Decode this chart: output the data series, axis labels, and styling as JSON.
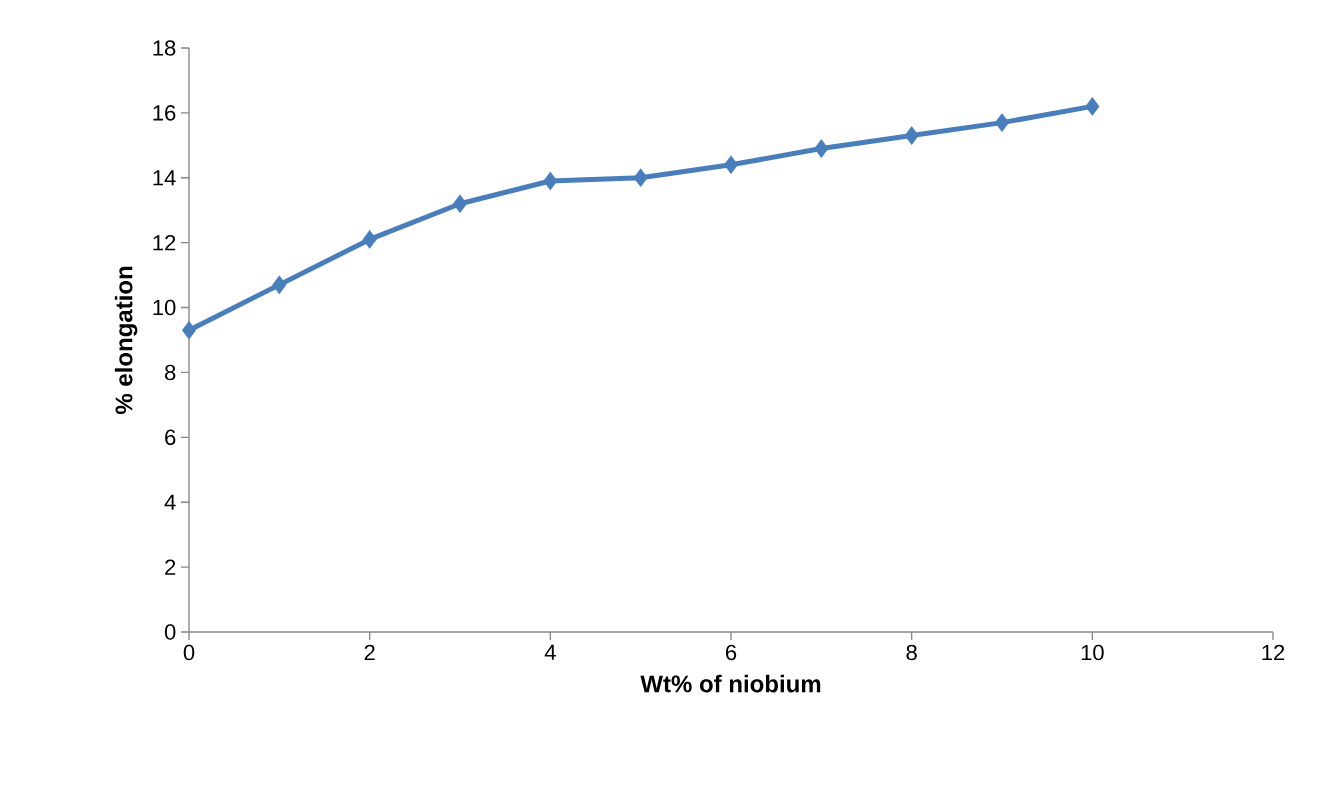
{
  "chart_data": {
    "type": "line",
    "xlabel": "Wt% of niobium",
    "ylabel": "% elongation",
    "x": [
      0,
      1,
      2,
      3,
      4,
      5,
      6,
      7,
      8,
      9,
      10
    ],
    "values": [
      9.3,
      10.7,
      12.1,
      13.2,
      13.9,
      14.0,
      14.4,
      14.9,
      15.3,
      15.7,
      16.2
    ],
    "color": "#4a7ebb",
    "marker": "diamond",
    "line_style": "solid",
    "xlim": [
      0,
      12
    ],
    "xticks": [
      0,
      2,
      4,
      6,
      8,
      10,
      12
    ],
    "ylim": [
      0,
      18
    ],
    "yticks": [
      0,
      2,
      4,
      6,
      8,
      10,
      12,
      14,
      16,
      18
    ]
  }
}
